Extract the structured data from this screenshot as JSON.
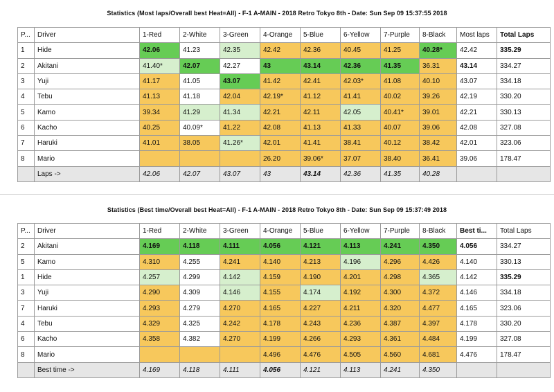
{
  "tables": [
    {
      "title": "Statistics (Most laps/Overall best Heat=All) - F-1 A-MAIN - 2018 Retro Tokyo 8th - Date: Sun Sep 09 15:37:55 2018",
      "headers": [
        "P...",
        "Driver",
        "1-Red",
        "2-White",
        "3-Green",
        "4-Orange",
        "5-Blue",
        "6-Yellow",
        "7-Purple",
        "8-Black",
        "Most laps",
        "Total Laps"
      ],
      "rows": [
        {
          "pos": "1",
          "driver": "Hide",
          "cells": [
            "42.06",
            "41.23",
            "42.35",
            "42.42",
            "42.36",
            "40.45",
            "41.25",
            "40.28*"
          ],
          "metric": "42.42",
          "total": "335.29"
        },
        {
          "pos": "2",
          "driver": "Akitani",
          "cells": [
            "41.40*",
            "42.07",
            "42.27",
            "43",
            "43.14",
            "42.36",
            "41.35",
            "36.31"
          ],
          "metric": "43.14",
          "total": "334.27"
        },
        {
          "pos": "3",
          "driver": "Yuji",
          "cells": [
            "41.17",
            "41.05",
            "43.07",
            "41.42",
            "42.41",
            "42.03*",
            "41.08",
            "40.10"
          ],
          "metric": "43.07",
          "total": "334.18"
        },
        {
          "pos": "4",
          "driver": "Tebu",
          "cells": [
            "41.13",
            "41.18",
            "42.04",
            "42.19*",
            "41.12",
            "41.41",
            "40.02",
            "39.26"
          ],
          "metric": "42.19",
          "total": "330.20"
        },
        {
          "pos": "5",
          "driver": "Kamo",
          "cells": [
            "39.34",
            "41.29",
            "41.34",
            "42.21",
            "42.11",
            "42.05",
            "40.41*",
            "39.01"
          ],
          "metric": "42.21",
          "total": "330.13"
        },
        {
          "pos": "6",
          "driver": "Kacho",
          "cells": [
            "40.25",
            "40.09*",
            "41.22",
            "42.08",
            "41.13",
            "41.33",
            "40.07",
            "39.06"
          ],
          "metric": "42.08",
          "total": "327.08"
        },
        {
          "pos": "7",
          "driver": "Haruki",
          "cells": [
            "41.01",
            "38.05",
            "41.26*",
            "42.01",
            "41.41",
            "38.41",
            "40.12",
            "38.42"
          ],
          "metric": "42.01",
          "total": "323.06"
        },
        {
          "pos": "8",
          "driver": "Mario",
          "cells": [
            "",
            "",
            "",
            "26.20",
            "39.06*",
            "37.07",
            "38.40",
            "36.41"
          ],
          "metric": "39.06",
          "total": "178.47"
        }
      ],
      "footer": {
        "label": "Laps ->",
        "cells": [
          "42.06",
          "42.07",
          "43.07",
          "43",
          "43.14",
          "42.36",
          "41.35",
          "40.28"
        ]
      }
    },
    {
      "title": "Statistics (Best time/Overall best Heat=All) - F-1 A-MAIN - 2018 Retro Tokyo 8th - Date: Sun Sep 09 15:37:49 2018",
      "headers": [
        "P...",
        "Driver",
        "1-Red",
        "2-White",
        "3-Green",
        "4-Orange",
        "5-Blue",
        "6-Yellow",
        "7-Purple",
        "8-Black",
        "Best ti...",
        "Total Laps"
      ],
      "rows": [
        {
          "pos": "2",
          "driver": "Akitani",
          "cells": [
            "4.169",
            "4.118",
            "4.111",
            "4.056",
            "4.121",
            "4.113",
            "4.241",
            "4.350"
          ],
          "metric": "4.056",
          "total": "334.27"
        },
        {
          "pos": "5",
          "driver": "Kamo",
          "cells": [
            "4.310",
            "4.255",
            "4.241",
            "4.140",
            "4.213",
            "4.196",
            "4.296",
            "4.426"
          ],
          "metric": "4.140",
          "total": "330.13"
        },
        {
          "pos": "1",
          "driver": "Hide",
          "cells": [
            "4.257",
            "4.299",
            "4.142",
            "4.159",
            "4.190",
            "4.201",
            "4.298",
            "4.365"
          ],
          "metric": "4.142",
          "total": "335.29"
        },
        {
          "pos": "3",
          "driver": "Yuji",
          "cells": [
            "4.290",
            "4.309",
            "4.146",
            "4.155",
            "4.174",
            "4.192",
            "4.300",
            "4.372"
          ],
          "metric": "4.146",
          "total": "334.18"
        },
        {
          "pos": "7",
          "driver": "Haruki",
          "cells": [
            "4.293",
            "4.279",
            "4.270",
            "4.165",
            "4.227",
            "4.211",
            "4.320",
            "4.477"
          ],
          "metric": "4.165",
          "total": "323.06"
        },
        {
          "pos": "4",
          "driver": "Tebu",
          "cells": [
            "4.329",
            "4.325",
            "4.242",
            "4.178",
            "4.243",
            "4.236",
            "4.387",
            "4.397"
          ],
          "metric": "4.178",
          "total": "330.20"
        },
        {
          "pos": "6",
          "driver": "Kacho",
          "cells": [
            "4.358",
            "4.382",
            "4.270",
            "4.199",
            "4.266",
            "4.293",
            "4.361",
            "4.484"
          ],
          "metric": "4.199",
          "total": "327.08"
        },
        {
          "pos": "8",
          "driver": "Mario",
          "cells": [
            "",
            "",
            "",
            "4.496",
            "4.476",
            "4.505",
            "4.560",
            "4.681"
          ],
          "metric": "4.476",
          "total": "178.47"
        }
      ],
      "footer": {
        "label": "Best time ->",
        "cells": [
          "4.169",
          "4.118",
          "4.111",
          "4.056",
          "4.121",
          "4.113",
          "4.241",
          "4.350"
        ]
      }
    }
  ],
  "cell_styles": [
    [
      [
        "best",
        "white",
        "good",
        "norm",
        "norm",
        "norm",
        "norm",
        "best"
      ],
      [
        "good",
        "best",
        "white",
        "best",
        "best",
        "best",
        "best",
        "norm"
      ],
      [
        "norm",
        "white",
        "best",
        "norm",
        "norm",
        "norm",
        "norm",
        "norm"
      ],
      [
        "norm",
        "white",
        "norm",
        "norm",
        "norm",
        "norm",
        "norm",
        "norm"
      ],
      [
        "norm",
        "good",
        "good",
        "norm",
        "norm",
        "good",
        "norm",
        "norm"
      ],
      [
        "norm",
        "white",
        "norm",
        "norm",
        "norm",
        "norm",
        "norm",
        "norm"
      ],
      [
        "norm",
        "norm",
        "good",
        "norm",
        "norm",
        "norm",
        "norm",
        "norm"
      ],
      [
        "norm",
        "norm",
        "norm",
        "norm",
        "norm",
        "norm",
        "norm",
        "norm"
      ]
    ],
    [
      [
        "best",
        "best",
        "best",
        "best",
        "best",
        "best",
        "best",
        "best"
      ],
      [
        "norm",
        "white",
        "norm",
        "norm",
        "norm",
        "good",
        "norm",
        "norm"
      ],
      [
        "good",
        "white",
        "good",
        "norm",
        "norm",
        "norm",
        "norm",
        "good"
      ],
      [
        "norm",
        "white",
        "good",
        "norm",
        "good",
        "norm",
        "norm",
        "norm"
      ],
      [
        "norm",
        "white",
        "norm",
        "norm",
        "norm",
        "norm",
        "norm",
        "norm"
      ],
      [
        "norm",
        "white",
        "norm",
        "norm",
        "norm",
        "norm",
        "norm",
        "norm"
      ],
      [
        "norm",
        "white",
        "norm",
        "norm",
        "norm",
        "norm",
        "norm",
        "norm"
      ],
      [
        "norm",
        "norm",
        "norm",
        "norm",
        "norm",
        "norm",
        "norm",
        "norm"
      ]
    ]
  ],
  "bold_metric": [
    [
      false,
      true,
      false,
      false,
      false,
      false,
      false,
      false
    ],
    [
      true,
      false,
      false,
      false,
      false,
      false,
      false,
      false
    ]
  ],
  "bold_total": [
    [
      true,
      false,
      false,
      false,
      false,
      false,
      false,
      false
    ],
    [
      false,
      false,
      true,
      false,
      false,
      false,
      false,
      false
    ]
  ],
  "bold_footer": [
    [
      false,
      false,
      false,
      false,
      true,
      false,
      false,
      false
    ],
    [
      false,
      false,
      false,
      true,
      false,
      false,
      false,
      false
    ]
  ],
  "bold_header_metric": [
    false,
    true
  ],
  "bold_header_total": [
    true,
    false
  ],
  "colors": {
    "red": "#f27b8c",
    "white": "#ffffff",
    "green": "#8fd48f",
    "orange": "#f5a060",
    "blue": "#71b8ec",
    "yellow": "#f6df2c",
    "purple": "#d482d9",
    "black": "#ffffff",
    "best": "#66cc55",
    "good": "#d6efcd",
    "norm": "#f7c85c"
  }
}
